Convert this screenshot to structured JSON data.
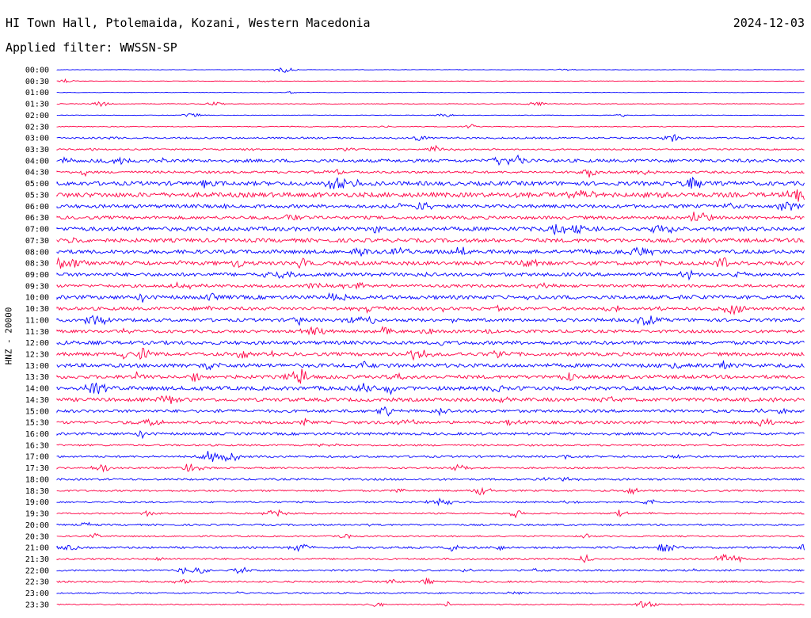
{
  "header": {
    "station": "HI Town Hall, Ptolemaida, Kozani, Western Macedonia",
    "date": "2024-12-03",
    "filter": "Applied filter: WWSSN-SP"
  },
  "chart_data": {
    "type": "line",
    "ylabel": "HNZ - 20000",
    "row_labels": [
      "00:00",
      "00:30",
      "01:00",
      "01:30",
      "02:00",
      "02:30",
      "03:00",
      "03:30",
      "04:00",
      "04:30",
      "05:00",
      "05:30",
      "06:00",
      "06:30",
      "07:00",
      "07:30",
      "08:00",
      "08:30",
      "09:00",
      "09:30",
      "10:00",
      "10:30",
      "11:00",
      "11:30",
      "12:00",
      "12:30",
      "13:00",
      "13:30",
      "14:00",
      "14:30",
      "15:00",
      "15:30",
      "16:00",
      "16:30",
      "17:00",
      "17:30",
      "18:00",
      "18:30",
      "19:00",
      "19:30",
      "20:00",
      "20:30",
      "21:00",
      "21:30",
      "22:00",
      "22:30",
      "23:00",
      "23:30"
    ],
    "series": [
      {
        "color": "#0000ff"
      },
      {
        "color": "#ff0044"
      }
    ],
    "noise_level": [
      0.3,
      0.3,
      0.3,
      0.4,
      0.4,
      0.6,
      1.2,
      1.0,
      2.2,
      1.6,
      2.8,
      3.2,
      2.4,
      2.2,
      2.8,
      2.6,
      2.6,
      2.6,
      2.4,
      2.0,
      2.6,
      2.2,
      2.2,
      2.0,
      2.4,
      2.4,
      2.6,
      2.4,
      2.6,
      2.4,
      2.0,
      2.0,
      1.8,
      1.2,
      1.4,
      1.2,
      1.4,
      1.2,
      1.2,
      1.0,
      1.2,
      1.0,
      1.4,
      1.2,
      1.2,
      1.2,
      1.0,
      0.8
    ]
  }
}
